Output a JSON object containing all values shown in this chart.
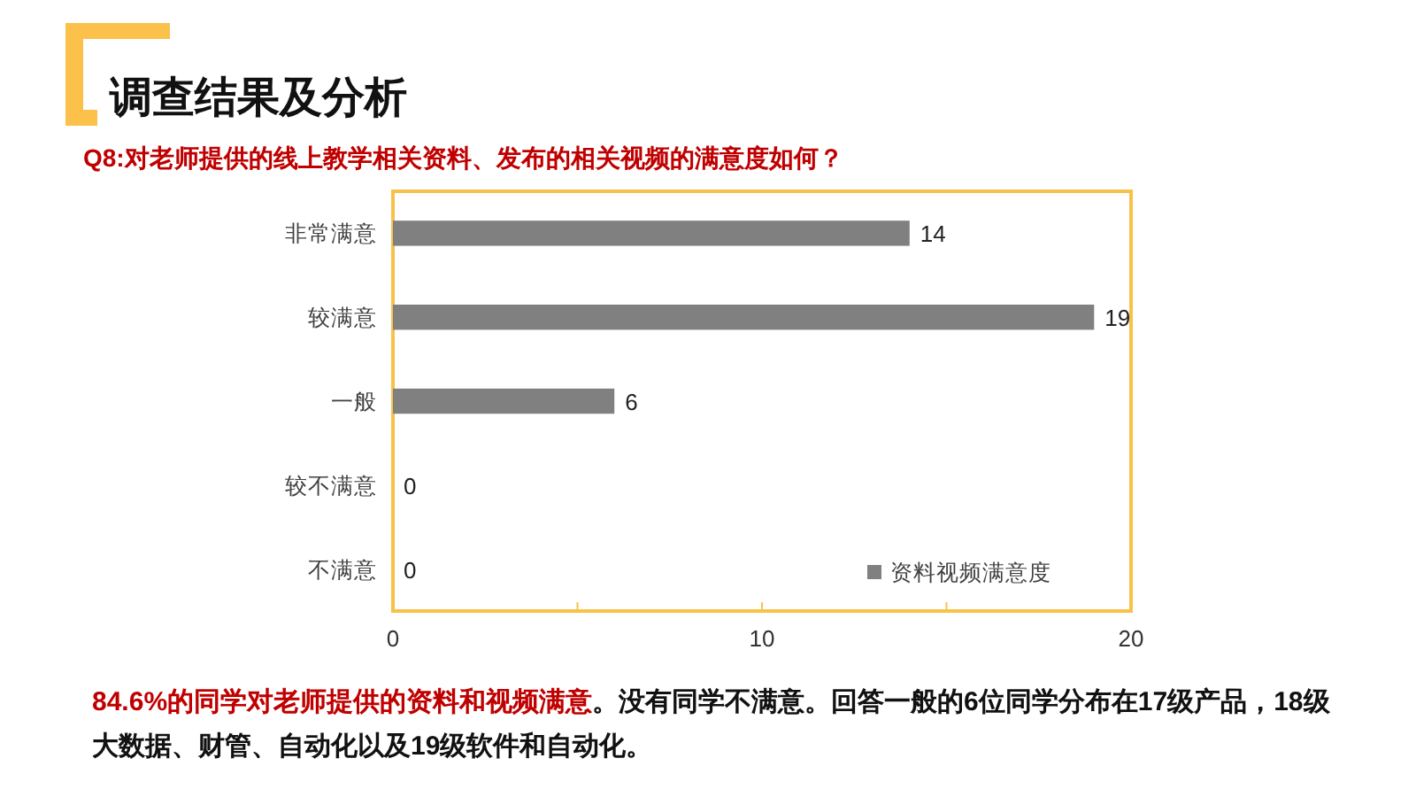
{
  "chart_data": {
    "type": "bar",
    "orientation": "horizontal",
    "title": "调查结果及分析",
    "subtitle": "Q8:对老师提供的线上教学相关资料、发布的相关视频的满意度如何？",
    "categories": [
      "非常满意",
      "较满意",
      "一般",
      "较不满意",
      "不满意"
    ],
    "series": [
      {
        "name": "资料视频满意度",
        "color": "#808080",
        "values": [
          14,
          19,
          6,
          0,
          0
        ]
      }
    ],
    "xlim": [
      0,
      20
    ],
    "xticks": [
      0,
      {
        "value": 5,
        "label": null
      },
      10,
      {
        "value": 15,
        "label": null
      },
      20
    ],
    "data_labels": true,
    "legend": "bottom right",
    "annotations": [
      "84.6%的同学对老师提供的资料和视频满意",
      "。没有同学不满意。回答一般的6位同学分布在17级产品，18级",
      "大数据、财管、自动化以及19级软件和自动化。"
    ]
  }
}
